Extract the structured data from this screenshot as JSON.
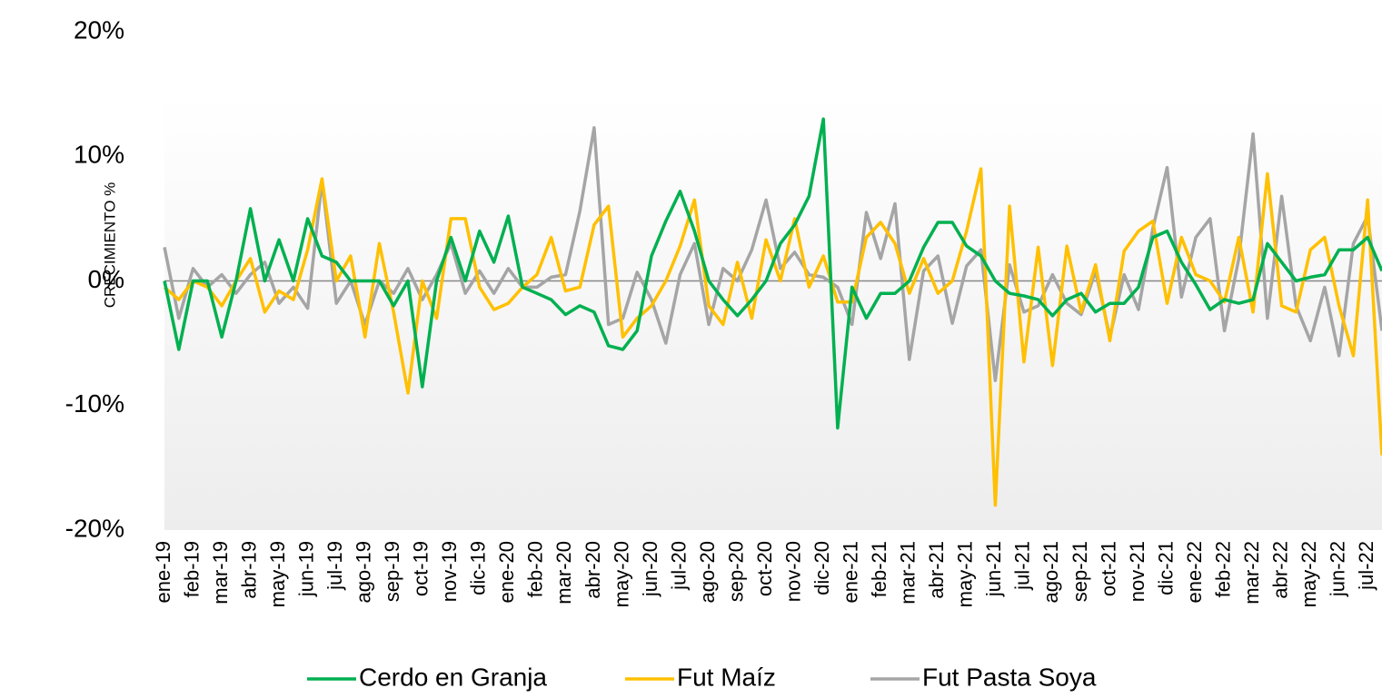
{
  "chart_data": {
    "type": "line",
    "y_label": "CRECIMIENTO %",
    "categories": [
      "ene-19",
      null,
      "feb-19",
      null,
      "mar-19",
      null,
      "abr-19",
      null,
      "may-19",
      null,
      "jun-19",
      null,
      "jul-19",
      null,
      "ago-19",
      null,
      "sep-19",
      null,
      "oct-19",
      null,
      "nov-19",
      null,
      "dic-19",
      null,
      "ene-20",
      null,
      "feb-20",
      null,
      "mar-20",
      null,
      "abr-20",
      null,
      "may-20",
      null,
      "jun-20",
      null,
      "jul-20",
      null,
      "ago-20",
      null,
      "sep-20",
      null,
      "oct-20",
      null,
      "nov-20",
      null,
      "dic-20",
      null,
      "ene-21",
      null,
      "feb-21",
      null,
      "mar-21",
      null,
      "abr-21",
      null,
      "may-21",
      null,
      "jun-21",
      null,
      "jul-21",
      null,
      "ago-21",
      null,
      "sep-21",
      null,
      "oct-21",
      null,
      "nov-21",
      null,
      "dic-21",
      null,
      "ene-22",
      null,
      "feb-22",
      null,
      "mar-22",
      null,
      "abr-22",
      null,
      "may-22",
      null,
      "jun-22",
      null,
      "jul-22",
      null
    ],
    "series": [
      {
        "name": "Cerdo en Granja",
        "color": "#00b050",
        "values": [
          0,
          -5.5,
          0,
          0,
          -4.5,
          0,
          5.8,
          0,
          3.3,
          0,
          5,
          2,
          1.5,
          0,
          0,
          0,
          -2,
          0,
          -8.5,
          0,
          3.5,
          0,
          4,
          1.5,
          5.2,
          -0.5,
          -1,
          -1.5,
          -2.7,
          -2,
          -2.5,
          -5.2,
          -5.5,
          -4,
          2,
          4.8,
          7.2,
          4,
          0,
          -1.5,
          -2.8,
          -1.5,
          0,
          3,
          4.5,
          6.8,
          13,
          -11.8,
          -0.5,
          -3,
          -1,
          -1,
          0,
          2.7,
          4.7,
          4.7,
          2.8,
          2,
          0,
          -1,
          -1.2,
          -1.5,
          -2.8,
          -1.5,
          -1,
          -2.5,
          -1.8,
          -1.8,
          -0.5,
          3.5,
          4,
          1.5,
          -0.3,
          -2.3,
          -1.5,
          -1.8,
          -1.5,
          3,
          1.5,
          0,
          0.3,
          0.5,
          2.5,
          2.5,
          3.5,
          0.8
        ]
      },
      {
        "name": "Fut Maíz",
        "color": "#ffc000",
        "values": [
          -0.5,
          -1.5,
          0,
          -0.5,
          -2,
          0,
          1.8,
          -2.5,
          -0.8,
          -1.5,
          2.5,
          8.2,
          0,
          2,
          -4.5,
          3,
          -2.5,
          -9,
          0,
          -3,
          5,
          5,
          -0.5,
          -2.3,
          -1.8,
          -0.5,
          0.5,
          3.5,
          -0.8,
          -0.5,
          4.5,
          6,
          -4.5,
          -3,
          -2,
          0,
          2.8,
          6.5,
          -2,
          -3.5,
          1.5,
          -3,
          3.3,
          0,
          5,
          -0.5,
          2,
          -1.7,
          -1.7,
          3.5,
          4.7,
          3,
          -1,
          1.8,
          -1,
          0,
          4,
          9,
          -18,
          6,
          -6.5,
          2.7,
          -6.8,
          2.8,
          -2.5,
          1.3,
          -4.8,
          2.4,
          4,
          4.8,
          -1.8,
          3.5,
          0.5,
          0,
          -1.7,
          3.5,
          -2.5,
          8.6,
          -2,
          -2.5,
          2.5,
          3.5,
          -2,
          -6,
          6.5,
          -14
        ]
      },
      {
        "name": "Fut Pasta Soya",
        "color": "#a5a5a5",
        "values": [
          2.7,
          -3,
          1,
          -0.5,
          0.5,
          -1,
          0.5,
          1.5,
          -1.8,
          -0.5,
          -2.2,
          8,
          -1.8,
          0,
          -3.5,
          0,
          -1,
          1,
          -1.5,
          0.5,
          3,
          -1,
          0.8,
          -1,
          1,
          -0.5,
          -0.5,
          0.3,
          0.5,
          5.6,
          12.3,
          -3.5,
          -3,
          0.7,
          -1.5,
          -5,
          0.5,
          3,
          -3.5,
          1,
          0,
          2.5,
          6.5,
          1,
          2.3,
          0.5,
          0.3,
          -0.5,
          -3.5,
          5.5,
          1.8,
          6.2,
          -6.3,
          0.8,
          2,
          -3.4,
          1.2,
          2.5,
          -8,
          1.3,
          -2.5,
          -2,
          0.5,
          -1.8,
          -2.7,
          0.8,
          -4.5,
          0.5,
          -2.3,
          4.2,
          9.1,
          -1.3,
          3.5,
          5,
          -4,
          1.8,
          11.8,
          -3,
          6.8,
          -2,
          -4.8,
          -0.5,
          -6,
          3,
          5.2,
          -4
        ]
      }
    ],
    "ylim": [
      -20,
      20
    ],
    "yticks": [
      {
        "value": -20,
        "label": "-20%"
      },
      {
        "value": -10,
        "label": "-10%"
      },
      {
        "value": 0,
        "label": "0%"
      },
      {
        "value": 10,
        "label": "10%"
      },
      {
        "value": 20,
        "label": "20%"
      }
    ],
    "grid": false,
    "legend": "bottom"
  }
}
